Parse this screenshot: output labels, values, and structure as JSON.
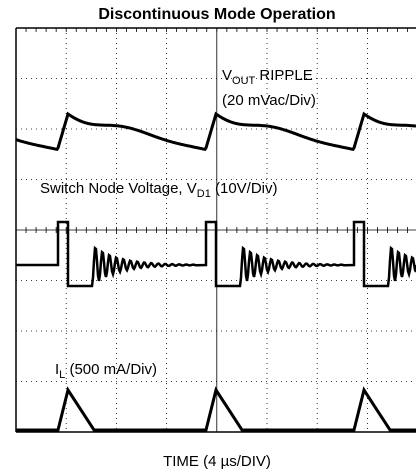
{
  "title": "Discontinuous Mode Operation",
  "vout_label": {
    "main": "V",
    "sub": "OUT",
    "rest": " RIPPLE",
    "scale": "(20 mVac/Div)"
  },
  "switch_label": {
    "main": "Switch Node Voltage, V",
    "sub": "D1",
    "rest": " (10V/Div)"
  },
  "inductor_label": {
    "main": "I",
    "sub": "L",
    "rest": " (500 mA/Div)"
  },
  "x_label": "TIME  (4 µs/DIV)"
}
